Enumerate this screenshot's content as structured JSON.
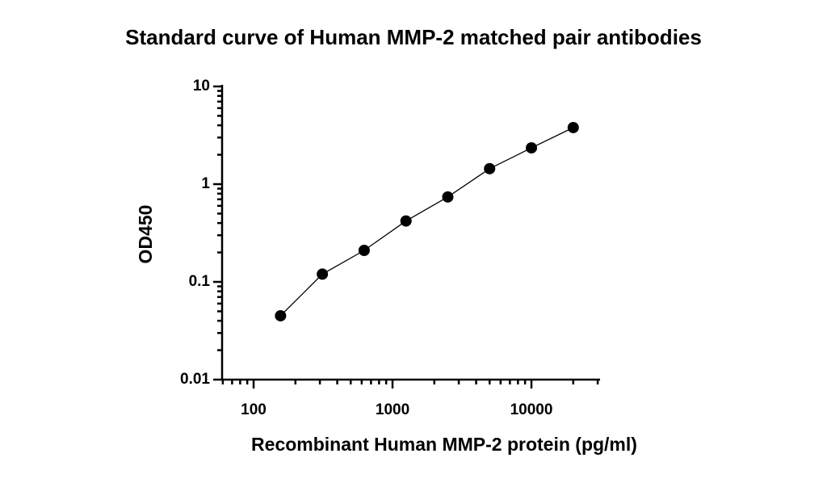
{
  "chart_data": {
    "type": "scatter",
    "title": "Standard curve of Human MMP-2 matched pair antibodies",
    "x_label": "Recombinant Human MMP-2 protein (pg/ml)",
    "y_label": "OD450",
    "x": [
      156.25,
      312.5,
      625,
      1250,
      2500,
      5000,
      10000,
      20000
    ],
    "values": [
      0.045,
      0.12,
      0.21,
      0.42,
      0.74,
      1.44,
      2.35,
      3.79
    ],
    "color": "#000000",
    "x_log": true,
    "y_log": true,
    "minor_ticks": true,
    "fit_line": true,
    "xlim": [
      59.3,
      31200
    ],
    "xticks": [
      100,
      1000,
      10000
    ],
    "ylim": [
      0.01,
      10
    ],
    "yticks": [
      0.01,
      0.1,
      1,
      10
    ]
  }
}
